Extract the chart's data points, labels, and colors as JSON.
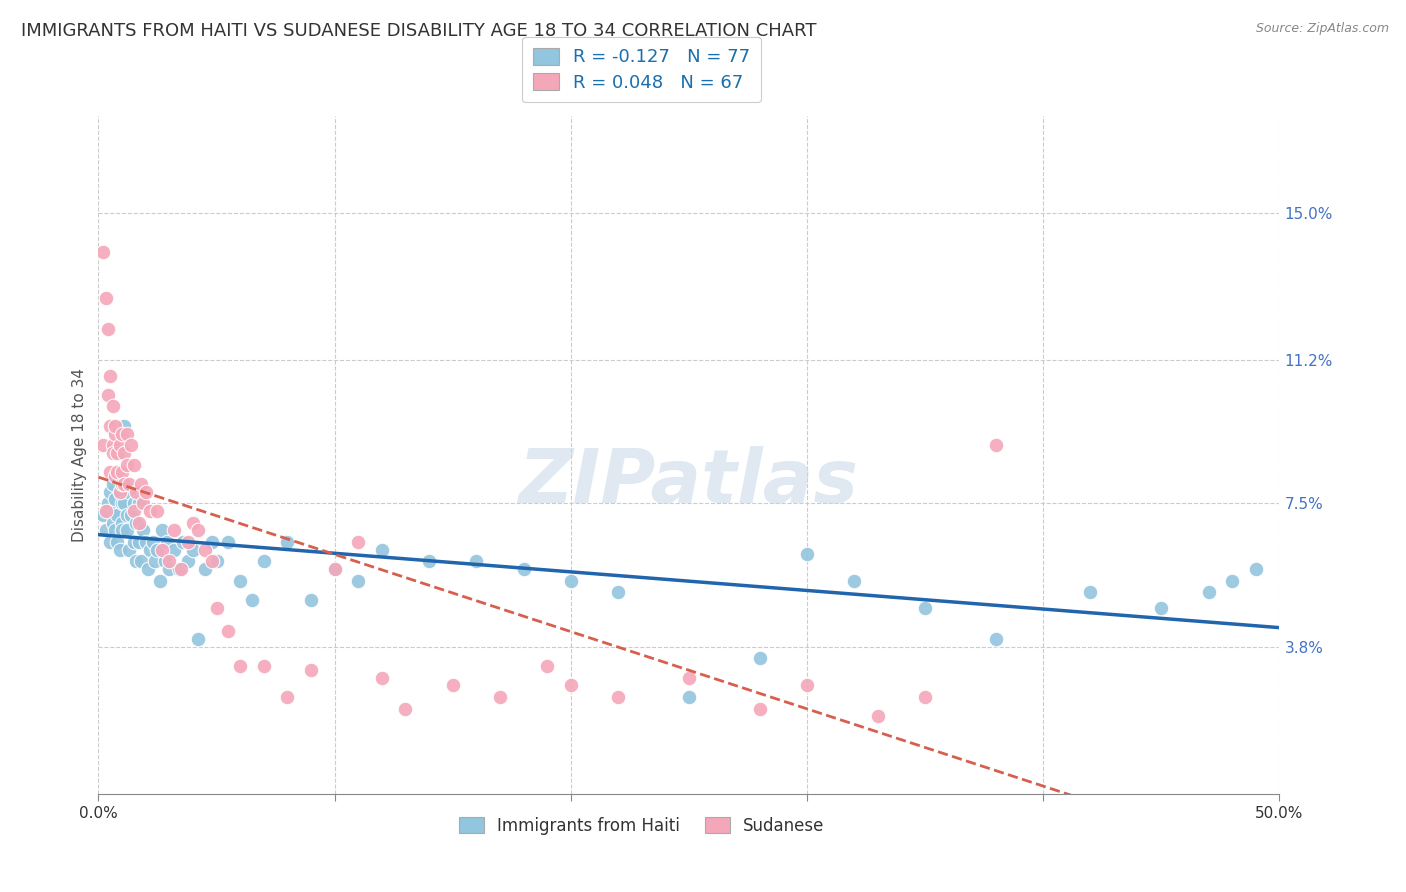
{
  "title": "IMMIGRANTS FROM HAITI VS SUDANESE DISABILITY AGE 18 TO 34 CORRELATION CHART",
  "source": "Source: ZipAtlas.com",
  "ylabel": "Disability Age 18 to 34",
  "xlim": [
    0.0,
    0.5
  ],
  "ylim": [
    0.0,
    0.175
  ],
  "ytick_labels_right": [
    "15.0%",
    "11.2%",
    "7.5%",
    "3.8%"
  ],
  "ytick_values_right": [
    0.15,
    0.112,
    0.075,
    0.038
  ],
  "haiti_R": -0.127,
  "haiti_N": 77,
  "sudanese_R": 0.048,
  "sudanese_N": 67,
  "haiti_color": "#92c5de",
  "sudanese_color": "#f4a7b9",
  "haiti_line_color": "#2166ac",
  "sudanese_line_color": "#d6604d",
  "legend_label_haiti": "Immigrants from Haiti",
  "legend_label_sudanese": "Sudanese",
  "watermark": "ZIPatlas",
  "haiti_x": [
    0.002,
    0.003,
    0.004,
    0.005,
    0.005,
    0.006,
    0.006,
    0.007,
    0.007,
    0.007,
    0.008,
    0.008,
    0.009,
    0.009,
    0.01,
    0.01,
    0.01,
    0.011,
    0.011,
    0.012,
    0.012,
    0.013,
    0.013,
    0.014,
    0.015,
    0.015,
    0.016,
    0.016,
    0.017,
    0.017,
    0.018,
    0.019,
    0.02,
    0.021,
    0.022,
    0.023,
    0.024,
    0.025,
    0.026,
    0.027,
    0.028,
    0.029,
    0.03,
    0.032,
    0.034,
    0.036,
    0.038,
    0.04,
    0.042,
    0.045,
    0.048,
    0.05,
    0.055,
    0.06,
    0.065,
    0.07,
    0.08,
    0.09,
    0.1,
    0.11,
    0.12,
    0.14,
    0.16,
    0.18,
    0.2,
    0.22,
    0.25,
    0.28,
    0.3,
    0.32,
    0.35,
    0.38,
    0.42,
    0.45,
    0.47,
    0.48,
    0.49
  ],
  "haiti_y": [
    0.072,
    0.068,
    0.075,
    0.065,
    0.078,
    0.07,
    0.08,
    0.073,
    0.068,
    0.076,
    0.065,
    0.072,
    0.078,
    0.063,
    0.07,
    0.075,
    0.068,
    0.075,
    0.095,
    0.072,
    0.068,
    0.078,
    0.063,
    0.072,
    0.065,
    0.075,
    0.06,
    0.07,
    0.075,
    0.065,
    0.06,
    0.068,
    0.065,
    0.058,
    0.063,
    0.065,
    0.06,
    0.063,
    0.055,
    0.068,
    0.06,
    0.065,
    0.058,
    0.063,
    0.058,
    0.065,
    0.06,
    0.063,
    0.04,
    0.058,
    0.065,
    0.06,
    0.065,
    0.055,
    0.05,
    0.06,
    0.065,
    0.05,
    0.058,
    0.055,
    0.063,
    0.06,
    0.06,
    0.058,
    0.055,
    0.052,
    0.025,
    0.035,
    0.062,
    0.055,
    0.048,
    0.04,
    0.052,
    0.048,
    0.052,
    0.055,
    0.058
  ],
  "sudanese_x": [
    0.002,
    0.002,
    0.003,
    0.003,
    0.004,
    0.004,
    0.005,
    0.005,
    0.005,
    0.006,
    0.006,
    0.006,
    0.007,
    0.007,
    0.007,
    0.008,
    0.008,
    0.009,
    0.009,
    0.01,
    0.01,
    0.01,
    0.011,
    0.011,
    0.012,
    0.012,
    0.013,
    0.014,
    0.015,
    0.015,
    0.016,
    0.017,
    0.018,
    0.019,
    0.02,
    0.022,
    0.025,
    0.027,
    0.03,
    0.032,
    0.035,
    0.038,
    0.04,
    0.042,
    0.045,
    0.048,
    0.05,
    0.055,
    0.06,
    0.07,
    0.08,
    0.09,
    0.1,
    0.11,
    0.12,
    0.13,
    0.15,
    0.17,
    0.19,
    0.2,
    0.22,
    0.25,
    0.28,
    0.3,
    0.33,
    0.35,
    0.38
  ],
  "sudanese_y": [
    0.14,
    0.09,
    0.128,
    0.073,
    0.103,
    0.12,
    0.108,
    0.095,
    0.083,
    0.1,
    0.09,
    0.088,
    0.093,
    0.082,
    0.095,
    0.088,
    0.083,
    0.078,
    0.09,
    0.08,
    0.083,
    0.093,
    0.08,
    0.088,
    0.085,
    0.093,
    0.08,
    0.09,
    0.073,
    0.085,
    0.078,
    0.07,
    0.08,
    0.075,
    0.078,
    0.073,
    0.073,
    0.063,
    0.06,
    0.068,
    0.058,
    0.065,
    0.07,
    0.068,
    0.063,
    0.06,
    0.048,
    0.042,
    0.033,
    0.033,
    0.025,
    0.032,
    0.058,
    0.065,
    0.03,
    0.022,
    0.028,
    0.025,
    0.033,
    0.028,
    0.025,
    0.03,
    0.022,
    0.028,
    0.02,
    0.025,
    0.09
  ],
  "background_color": "#ffffff",
  "grid_color": "#cccccc",
  "title_fontsize": 13,
  "axis_label_fontsize": 11,
  "tick_fontsize": 11,
  "legend_fontsize": 13
}
